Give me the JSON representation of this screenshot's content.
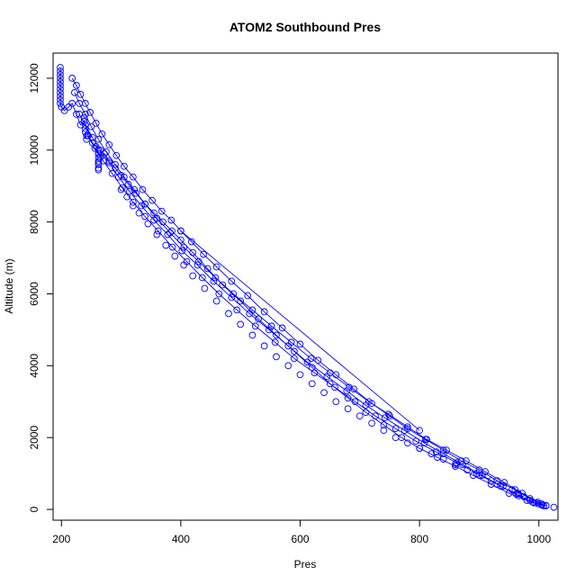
{
  "chart_data": {
    "type": "scatter",
    "title": "ATOM2 Southbound Pres",
    "xlabel": "Pres",
    "ylabel": "Altitude (m)",
    "xlim": [
      186,
      1032
    ],
    "ylim": [
      -300,
      12700
    ],
    "x_ticks": [
      200,
      400,
      600,
      800,
      1000
    ],
    "y_ticks": [
      0,
      2000,
      4000,
      6000,
      8000,
      10000,
      12000
    ],
    "x_tick_labels": [
      "200",
      "400",
      "600",
      "800",
      "1000"
    ],
    "y_tick_labels": [
      "0",
      "2000",
      "4000",
      "6000",
      "8000",
      "10000",
      "12000"
    ],
    "grid": false,
    "legend": "none",
    "point_color": "#0000ff",
    "line_color": "#0000ff",
    "marker": "open-circle",
    "series": [
      {
        "style": "points-and-lines",
        "x": [
          198,
          198,
          198,
          198,
          198,
          198,
          198,
          198,
          198,
          198,
          198,
          200,
          205,
          212,
          218,
          225,
          232,
          238,
          245,
          252,
          258,
          265,
          272,
          280,
          290,
          300,
          312,
          325,
          340,
          355,
          370,
          385,
          400,
          420,
          445,
          470,
          500,
          530,
          560,
          590,
          620,
          650,
          680,
          710,
          740,
          770,
          800,
          830,
          860,
          890,
          920,
          950,
          980,
          1000,
          1012
        ],
        "y": [
          12300,
          12200,
          12100,
          12000,
          11900,
          11800,
          11700,
          11600,
          11500,
          11400,
          11300,
          11200,
          11100,
          11200,
          11300,
          11000,
          10700,
          10800,
          10400,
          10200,
          10100,
          9800,
          9900,
          9700,
          9500,
          9300,
          9050,
          8800,
          8500,
          8250,
          8000,
          7750,
          7500,
          7150,
          6700,
          6250,
          5800,
          5300,
          4850,
          4400,
          3950,
          3500,
          3100,
          2700,
          2350,
          2000,
          1700,
          1450,
          1200,
          950,
          700,
          450,
          250,
          150,
          100
        ]
      },
      {
        "style": "points-and-lines",
        "x": [
          218,
          225,
          232,
          240,
          248,
          258,
          268,
          280,
          292,
          305,
          320,
          336,
          352,
          368,
          384,
          400,
          418,
          438,
          460,
          485,
          512,
          540,
          570,
          600,
          630,
          660,
          690,
          720,
          750,
          780,
          810,
          840,
          870,
          900,
          930,
          960,
          985,
          1005
        ],
        "y": [
          12000,
          11800,
          11550,
          11300,
          11050,
          10750,
          10450,
          10150,
          9850,
          9550,
          9250,
          8900,
          8600,
          8300,
          8050,
          7750,
          7450,
          7100,
          6750,
          6350,
          5950,
          5500,
          5050,
          4600,
          4150,
          3750,
          3350,
          2950,
          2600,
          2250,
          1950,
          1650,
          1350,
          1100,
          800,
          550,
          300,
          150
        ]
      },
      {
        "style": "points-and-lines",
        "x": [
          222,
          230,
          240,
          250,
          262,
          275,
          290,
          305,
          322,
          340,
          360,
          382,
          405,
          430,
          458,
          488,
          520,
          552,
          585,
          618,
          650,
          682,
          715,
          748,
          780,
          812,
          845,
          878,
          910,
          942,
          972,
          998
        ],
        "y": [
          11600,
          11300,
          11000,
          10650,
          10300,
          9950,
          9600,
          9250,
          8900,
          8500,
          8100,
          7700,
          7300,
          6900,
          6450,
          6000,
          5550,
          5100,
          4650,
          4200,
          3800,
          3400,
          3000,
          2650,
          2300,
          1950,
          1650,
          1350,
          1050,
          750,
          450,
          200
        ]
      },
      {
        "style": "points-and-lines",
        "x": [
          230,
          240,
          252,
          265,
          280,
          296,
          314,
          334,
          355,
          378,
          402,
          428,
          455,
          485,
          515,
          548,
          580,
          612,
          645,
          678,
          710,
          742,
          775,
          808,
          840,
          872,
          905,
          936,
          966,
          992,
          1008
        ],
        "y": [
          11000,
          10700,
          10350,
          10000,
          9650,
          9250,
          8850,
          8450,
          8050,
          7650,
          7200,
          6800,
          6350,
          5900,
          5450,
          5000,
          4550,
          4100,
          3700,
          3300,
          2900,
          2550,
          2200,
          1850,
          1550,
          1250,
          950,
          650,
          380,
          180,
          100
        ]
      },
      {
        "style": "points-and-lines",
        "x": [
          244,
          256,
          270,
          285,
          302,
          320,
          340,
          362,
          386,
          410,
          436,
          464,
          494,
          525,
          558,
          590,
          624,
          658,
          692,
          726,
          760,
          794,
          828,
          862,
          896,
          930,
          962,
          990,
          1012
        ],
        "y": [
          10400,
          10050,
          9700,
          9350,
          8950,
          8550,
          8150,
          7750,
          7300,
          6900,
          6450,
          6000,
          5550,
          5100,
          4650,
          4200,
          3800,
          3400,
          3000,
          2600,
          2250,
          1900,
          1600,
          1300,
          1000,
          700,
          420,
          200,
          110
        ]
      },
      {
        "style": "points-and-lines",
        "x": [
          400,
          800
        ],
        "y": [
          7750,
          2200
        ]
      },
      {
        "style": "points",
        "x": [
          262,
          262,
          262,
          262,
          262,
          262,
          262,
          262,
          262,
          238,
          238,
          240,
          240,
          242,
          242,
          300,
          310,
          320,
          330,
          345,
          360,
          375,
          390,
          405,
          420,
          440,
          460,
          480,
          500,
          520,
          540,
          560,
          580,
          600,
          620,
          640,
          660,
          680,
          700,
          720,
          740,
          760,
          780,
          800,
          820,
          840,
          860,
          880,
          900,
          920,
          940,
          955,
          965,
          975,
          985,
          995,
          1005,
          1025
        ],
        "y": [
          10000,
          9900,
          9800,
          9700,
          9600,
          9500,
          9450,
          9650,
          9900,
          10900,
          10800,
          10600,
          10500,
          10400,
          10300,
          8900,
          8700,
          8450,
          8250,
          7950,
          7650,
          7350,
          7050,
          6800,
          6500,
          6150,
          5800,
          5450,
          5150,
          4850,
          4550,
          4250,
          4000,
          3750,
          3500,
          3250,
          3000,
          2800,
          2600,
          2400,
          2200,
          2000,
          1850,
          1700,
          1550,
          1400,
          1250,
          1100,
          950,
          800,
          650,
          550,
          450,
          350,
          250,
          180,
          120,
          60
        ]
      }
    ]
  }
}
